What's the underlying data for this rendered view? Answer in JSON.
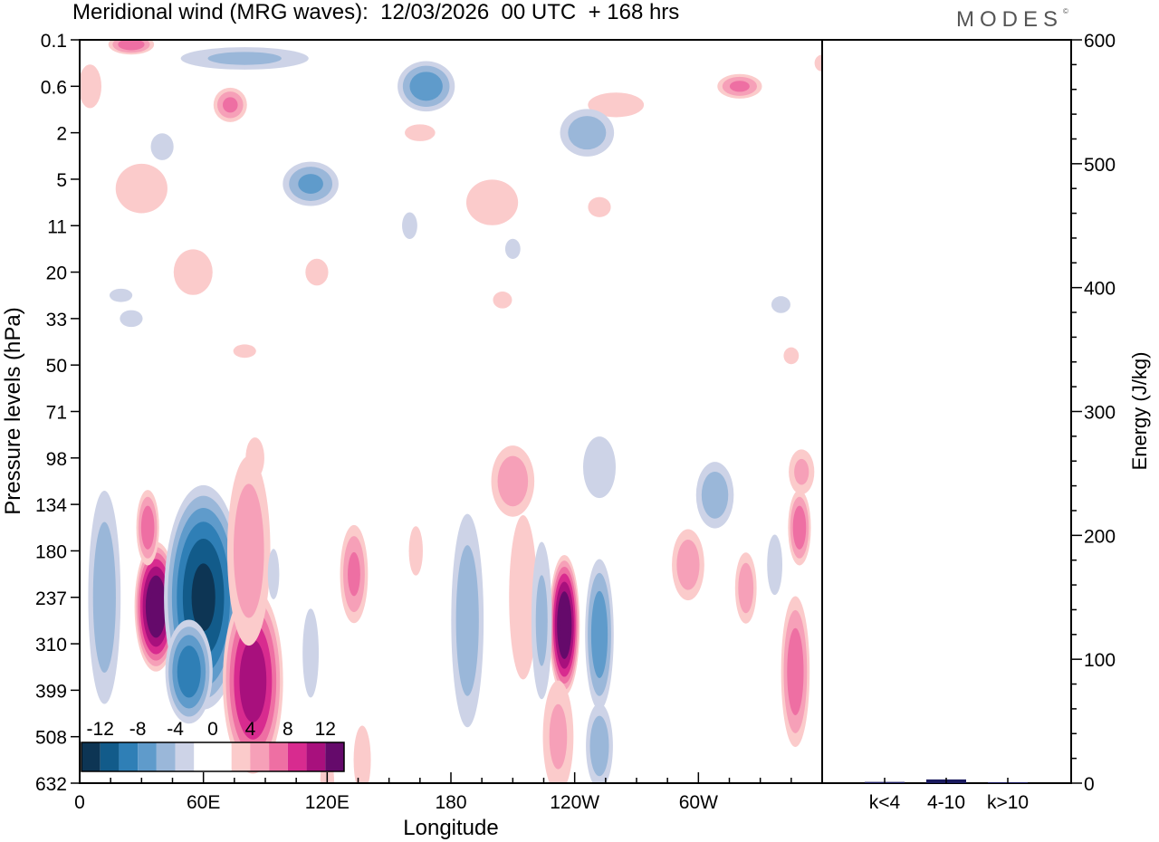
{
  "title": "Meridional wind (MRG waves):  12/03/2026  00 UTC  + 168 hrs",
  "logo": {
    "text": "MODES",
    "mark": "©"
  },
  "chart_data": [
    {
      "type": "heatmap",
      "title": "Meridional wind (MRG waves):  12/03/2026  00 UTC  + 168 hrs",
      "xlabel": "Longitude",
      "ylabel": "Pressure levels (hPa)",
      "x_ticks": [
        "0",
        "60E",
        "120E",
        "180",
        "120W",
        "60W"
      ],
      "x_tick_degrees": [
        0,
        60,
        120,
        180,
        240,
        300
      ],
      "x_range_degrees": [
        0,
        360
      ],
      "y_levels": [
        "0.1",
        "0.6",
        "2",
        "5",
        "11",
        "20",
        "33",
        "50",
        "71",
        "98",
        "134",
        "180",
        "237",
        "310",
        "399",
        "508",
        "632"
      ],
      "colorbar": {
        "labels": [
          "-12",
          "-8",
          "-4",
          "0",
          "4",
          "8",
          "12"
        ],
        "colors": [
          "#0d3554",
          "#125b8a",
          "#2f7fb6",
          "#5f9bcb",
          "#9ab7d9",
          "#cdd3e7",
          "#ffffff",
          "#ffffff",
          "#fbcbcb",
          "#f6a0b8",
          "#ee6fa3",
          "#d82b8f",
          "#a8107d",
          "#650a6b"
        ]
      },
      "features": [
        {
          "lon": 37,
          "level_index": 12.2,
          "lon_width": 7,
          "level_height": 2.4,
          "sign": 1,
          "peak": 15
        },
        {
          "lon": 33,
          "level_index": 10.5,
          "lon_width": 4,
          "level_height": 1.5,
          "sign": 1,
          "peak": 8
        },
        {
          "lon": 60,
          "level_index": 12.0,
          "lon_width": 13,
          "level_height": 4.2,
          "sign": -1,
          "peak": 13
        },
        {
          "lon": 53,
          "level_index": 13.6,
          "lon_width": 8,
          "level_height": 2.0,
          "sign": -1,
          "peak": 10
        },
        {
          "lon": 84,
          "level_index": 13.8,
          "lon_width": 10,
          "level_height": 3.5,
          "sign": 1,
          "peak": 12
        },
        {
          "lon": 82,
          "level_index": 11.0,
          "lon_width": 8,
          "level_height": 4.0,
          "sign": 1,
          "peak": 6
        },
        {
          "lon": 12,
          "level_index": 12.0,
          "lon_width": 6,
          "level_height": 4.5,
          "sign": -1,
          "peak": 6
        },
        {
          "lon": 112,
          "level_index": 13.2,
          "lon_width": 4,
          "level_height": 2.5,
          "sign": -1,
          "peak": 3.2
        },
        {
          "lon": 133,
          "level_index": 11.5,
          "lon_width": 5,
          "level_height": 2.0,
          "sign": 1,
          "peak": 7
        },
        {
          "lon": 137,
          "level_index": 15.5,
          "lon_width": 4,
          "level_height": 1.8,
          "sign": 1,
          "peak": 3.5
        },
        {
          "lon": 188,
          "level_index": 12.5,
          "lon_width": 6,
          "level_height": 4.5,
          "sign": -1,
          "peak": 6
        },
        {
          "lon": 210,
          "level_index": 9.5,
          "lon_width": 8,
          "level_height": 1.5,
          "sign": 1,
          "peak": 6
        },
        {
          "lon": 215,
          "level_index": 12.0,
          "lon_width": 6,
          "level_height": 4.0,
          "sign": 1,
          "peak": 4
        },
        {
          "lon": 235,
          "level_index": 12.6,
          "lon_width": 5,
          "level_height": 2.6,
          "sign": 1,
          "peak": 15
        },
        {
          "lon": 232,
          "level_index": 15.0,
          "lon_width": 6,
          "level_height": 2.5,
          "sign": 1,
          "peak": 5
        },
        {
          "lon": 224,
          "level_index": 12.5,
          "lon_width": 4,
          "level_height": 3.5,
          "sign": -1,
          "peak": 5
        },
        {
          "lon": 252,
          "level_index": 12.8,
          "lon_width": 5,
          "level_height": 3.0,
          "sign": -1,
          "peak": 8
        },
        {
          "lon": 252,
          "level_index": 15.2,
          "lon_width": 5,
          "level_height": 1.8,
          "sign": -1,
          "peak": 6
        },
        {
          "lon": 252,
          "level_index": 9.2,
          "lon_width": 7,
          "level_height": 1.5,
          "sign": -1,
          "peak": 4
        },
        {
          "lon": 295,
          "level_index": 11.3,
          "lon_width": 6,
          "level_height": 1.5,
          "sign": 1,
          "peak": 6
        },
        {
          "lon": 308,
          "level_index": 9.8,
          "lon_width": 7,
          "level_height": 1.4,
          "sign": -1,
          "peak": 6
        },
        {
          "lon": 323,
          "level_index": 11.8,
          "lon_width": 4,
          "level_height": 1.5,
          "sign": 1,
          "peak": 6
        },
        {
          "lon": 347,
          "level_index": 13.6,
          "lon_width": 5,
          "level_height": 3.0,
          "sign": 1,
          "peak": 8
        },
        {
          "lon": 349,
          "level_index": 10.5,
          "lon_width": 4,
          "level_height": 1.5,
          "sign": 1,
          "peak": 8
        },
        {
          "lon": 350,
          "level_index": 9.3,
          "lon_width": 5,
          "level_height": 1.0,
          "sign": 1,
          "peak": 5
        },
        {
          "lon": 337,
          "level_index": 11.3,
          "lon_width": 4,
          "level_height": 1.8,
          "sign": -1,
          "peak": 3
        },
        {
          "lon": 94,
          "level_index": 11.5,
          "lon_width": 3,
          "level_height": 1.5,
          "sign": -1,
          "peak": 3
        },
        {
          "lon": 163,
          "level_index": 11.0,
          "lon_width": 3,
          "level_height": 1.2,
          "sign": 1,
          "peak": 4
        },
        {
          "lon": 85,
          "level_index": 9.0,
          "lon_width": 4,
          "level_height": 1.0,
          "sign": 1,
          "peak": 4
        },
        {
          "lon": 120,
          "level_index": 16.0,
          "lon_width": 3,
          "level_height": 1.5,
          "sign": 1,
          "peak": 4
        },
        {
          "lon": 25,
          "level_index": 0.1,
          "lon_width": 8,
          "level_height": 0.4,
          "sign": 1,
          "peak": 8
        },
        {
          "lon": 80,
          "level_index": 0.4,
          "lon_width": 25,
          "level_height": 0.5,
          "sign": -1,
          "peak": 5
        },
        {
          "lon": 168,
          "level_index": 1.0,
          "lon_width": 10,
          "level_height": 1.0,
          "sign": -1,
          "peak": 8
        },
        {
          "lon": 260,
          "level_index": 1.4,
          "lon_width": 12,
          "level_height": 0.6,
          "sign": 1,
          "peak": 4
        },
        {
          "lon": 320,
          "level_index": 1.0,
          "lon_width": 8,
          "level_height": 0.5,
          "sign": 1,
          "peak": 7
        },
        {
          "lon": 73,
          "level_index": 1.4,
          "lon_width": 6,
          "level_height": 0.7,
          "sign": 1,
          "peak": 7
        },
        {
          "lon": 246,
          "level_index": 2.0,
          "lon_width": 10,
          "level_height": 1.0,
          "sign": -1,
          "peak": 6
        },
        {
          "lon": 112,
          "level_index": 3.1,
          "lon_width": 10,
          "level_height": 0.9,
          "sign": -1,
          "peak": 7
        },
        {
          "lon": 5,
          "level_index": 1.0,
          "lon_width": 6,
          "level_height": 1.3,
          "sign": 1,
          "peak": 3
        },
        {
          "lon": 30,
          "level_index": 3.2,
          "lon_width": 12,
          "level_height": 1.3,
          "sign": 1,
          "peak": 3.5
        },
        {
          "lon": 55,
          "level_index": 5.0,
          "lon_width": 9,
          "level_height": 1.2,
          "sign": 1,
          "peak": 3.5
        },
        {
          "lon": 200,
          "level_index": 3.5,
          "lon_width": 12,
          "level_height": 1.2,
          "sign": 1,
          "peak": 3.5
        },
        {
          "lon": 165,
          "level_index": 2.0,
          "lon_width": 8,
          "level_height": 0.5,
          "sign": 1,
          "peak": 3
        },
        {
          "lon": 40,
          "level_index": 2.3,
          "lon_width": 6,
          "level_height": 0.8,
          "sign": -1,
          "peak": 3
        },
        {
          "lon": 160,
          "level_index": 4.0,
          "lon_width": 4,
          "level_height": 0.8,
          "sign": -1,
          "peak": 3
        },
        {
          "lon": 252,
          "level_index": 3.6,
          "lon_width": 6,
          "level_height": 0.6,
          "sign": 1,
          "peak": 3
        },
        {
          "lon": 115,
          "level_index": 5.0,
          "lon_width": 6,
          "level_height": 0.8,
          "sign": 1,
          "peak": 3
        },
        {
          "lon": 20,
          "level_index": 5.5,
          "lon_width": 6,
          "level_height": 0.4,
          "sign": -1,
          "peak": 3
        },
        {
          "lon": 340,
          "level_index": 5.7,
          "lon_width": 5,
          "level_height": 0.5,
          "sign": -1,
          "peak": 3
        },
        {
          "lon": 205,
          "level_index": 5.6,
          "lon_width": 5,
          "level_height": 0.5,
          "sign": 1,
          "peak": 3
        },
        {
          "lon": 345,
          "level_index": 6.8,
          "lon_width": 4,
          "level_height": 0.5,
          "sign": 1,
          "peak": 3
        },
        {
          "lon": 25,
          "level_index": 6.0,
          "lon_width": 6,
          "level_height": 0.5,
          "sign": -1,
          "peak": 3
        },
        {
          "lon": 80,
          "level_index": 6.7,
          "lon_width": 6,
          "level_height": 0.4,
          "sign": 1,
          "peak": 3
        },
        {
          "lon": 210,
          "level_index": 4.5,
          "lon_width": 4,
          "level_height": 0.6,
          "sign": -1,
          "peak": 3
        },
        {
          "lon": 360,
          "level_index": 0.5,
          "lon_width": 4,
          "level_height": 0.5,
          "sign": 1,
          "peak": 3
        }
      ]
    },
    {
      "type": "bar",
      "categories": [
        "k<4",
        "4-10",
        "k>10"
      ],
      "values": [
        1.0,
        3.0,
        0.6
      ],
      "ylabel": "Energy (J/kg)",
      "ylim": [
        0,
        600
      ],
      "y_ticks": [
        "0",
        "100",
        "200",
        "300",
        "400",
        "500",
        "600"
      ],
      "bar_color": "#1a1a5e"
    }
  ]
}
